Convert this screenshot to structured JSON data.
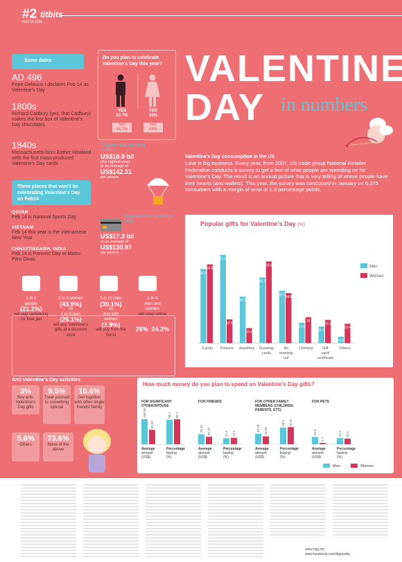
{
  "header": {
    "issue": "#2",
    "date": "FEB 10 2015",
    "section": "titbits"
  },
  "title": {
    "line1": "VALENTINE'S",
    "line2": "DAY",
    "line3": "in numbers"
  },
  "some_dates": {
    "heading": "Some dates",
    "items": [
      {
        "year": "AD 496",
        "text": "Pope Gelasius I declares Feb 14 as Valentine's Day"
      },
      {
        "year": "1800s",
        "text": "Richard Cadbury (yes, that Cadbury) makes the first box of Valentine's Day chocolates"
      },
      {
        "year": "1840s",
        "text": "Massachusetts-born Esther Howland sells the first mass-produced Valentine's Day cards"
      }
    ]
  },
  "three_places": {
    "heading": "Three places that won't be celebrating Valentine's Day on Feb14",
    "items": [
      {
        "place": "QATAR",
        "text": "Feb 14 is National Sports Day"
      },
      {
        "place": "VIETNAM",
        "text": "Feb 14 this year is the Vietnamese New Year"
      },
      {
        "place": "CHHATTISGARH, INDIA",
        "text": "Feb 14 is Parents' Day or Matru-Pitru Divas"
      }
    ]
  },
  "celebrate": {
    "question": "Do you plan to celebrate Valentine's Day this year?",
    "men": {
      "yes_label": "YES",
      "yes": "53.7%",
      "no_label": "NO",
      "no": "46.3%"
    },
    "women": {
      "yes_label": "YES",
      "yes": "56%",
      "no_label": "NO",
      "no": "44%"
    }
  },
  "spending_2015": {
    "label": "Projected total spending in 2015",
    "total": "US$18.9 bil",
    "sub1": "(the highest ever)",
    "sub2": "or an average of",
    "avg": "US$142.31",
    "per": "per person"
  },
  "spending_2014": {
    "label": "Projected total spending in 2014",
    "total": "US$17.3 bil",
    "sub2": "or an average of",
    "avg": "US$130.97",
    "per": "per person"
  },
  "consumption": {
    "heading": "Valentine's Day consumption in the US",
    "paragraph": "Love is big business. Every year, from 2007, US trade group National Retailer Federation conducts a survey to get a feel of what people are spending on for Valentine's Day. The result is an annual picture that is very telling of where people have their hearts (and wallets). This year, the survey was conducted in January on 6,375 consumers with a margin of error of 1.3 percentage points."
  },
  "people_stats": [
    {
      "top": "1 in 5",
      "line2": "people",
      "line3": "(21.2%)",
      "line4": "will buy something for their pet"
    },
    {
      "top": "2 in 5 women",
      "line2": "(43.9%)",
      "vs": "vs",
      "line3": "1 in 5 men",
      "line3b": "(26.1%)",
      "line4": "will buy Valentine's gifts at a discount store"
    },
    {
      "top": "3 in 10 men",
      "line2": "(30.1%)",
      "vs": "vs",
      "line3": "8 in 100",
      "line3b": "women",
      "line3c": "(7.9%)",
      "line4": "will buy from the florist"
    },
    {
      "top": "1 in 4",
      "line2": "men and",
      "line3": "women",
      "line4": "will shop online",
      "men": "26%",
      "women": "24.2%"
    }
  ],
  "anti": {
    "heading": "Anti-Valentine's Day activities",
    "items": [
      {
        "value": "3%",
        "text": "Buy anti-Valentine's Day gifts"
      },
      {
        "value": "9.5%",
        "text": "Treat yourself to something special"
      },
      {
        "value": "10.6%",
        "text": "Get together with other single friends/ family"
      },
      {
        "value": "5.6%",
        "text": "Others"
      },
      {
        "value": "73.6%",
        "text": "None of the above"
      }
    ]
  },
  "chart_data": [
    {
      "type": "bar",
      "title": "Popular gifts for Valentine's Day",
      "title_suffix": "(%)",
      "categories": [
        "Candy",
        "Flowers",
        "Jewellery",
        "Greeting cards",
        "An evening out",
        "Clothing",
        "Gift card/ certificate",
        "Others"
      ],
      "series": [
        {
          "name": "Men",
          "values": [
            51.5,
            61.4,
            32.3,
            45.7,
            36.5,
            14.1,
            11.5,
            4.4
          ],
          "color": "#5bc6d8"
        },
        {
          "name": "Women",
          "values": [
            54.8,
            16.5,
            10.4,
            56.8,
            34.8,
            18,
            16.1,
            13.4
          ],
          "color": "#d8335a"
        }
      ],
      "ylim": [
        0,
        70
      ]
    },
    {
      "type": "bar",
      "title": "How much money do you plan to spend on Valentine's Day gifts?",
      "groups": [
        {
          "title": "FOR SIGNIFICANT OTHER/SPOUSE",
          "avg": {
            "men": 108.38,
            "women": 62.07
          },
          "pct": {
            "men": 88.2,
            "women": 89.7
          }
        },
        {
          "title": "FOR FRIENDS",
          "avg": {
            "men": 43.42,
            "women": 32.22
          },
          "pct": {
            "men": 21.4,
            "women": 23.1
          }
        },
        {
          "title": "FOR OTHER FAMILY MEMBERS (CHILDREN, PARENTS, ETC)",
          "avg": {
            "men": 45.26,
            "women": 34.08
          },
          "pct": {
            "men": 60.3,
            "women": 61.8
          }
        },
        {
          "title": "FOR PETS",
          "avg": {
            "men": 31.9,
            "women": 5.7
          },
          "pct": {
            "men": 22.2,
            "women": 20.1
          }
        }
      ],
      "avg_label": "Average amount (US$)",
      "pct_label": "Percentage buying (%)",
      "legend": [
        "Men",
        "Women"
      ]
    }
  ],
  "footer": {
    "text": "www.mjg.my",
    "social": "www.facebook.com/digmedia"
  }
}
